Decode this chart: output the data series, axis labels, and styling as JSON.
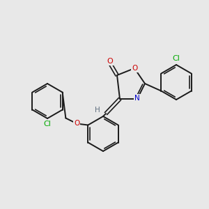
{
  "bg_color": "#e8e8e8",
  "bond_color": "#1a1a1a",
  "atom_colors": {
    "O": "#cc0000",
    "N": "#0000cc",
    "Cl": "#00aa00",
    "H": "#607080",
    "C": "#1a1a1a"
  },
  "fig_size": [
    3.0,
    3.0
  ],
  "dpi": 100
}
